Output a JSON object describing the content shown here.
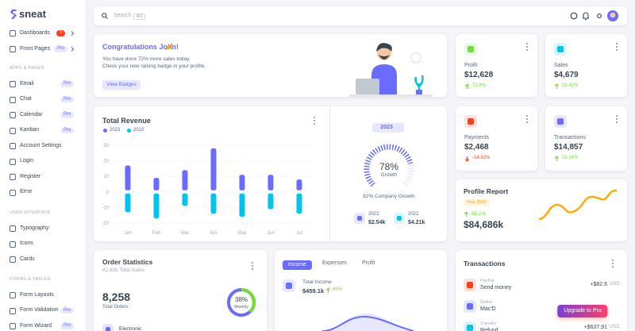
{
  "sidebar": {
    "brand": "sneat",
    "items": [
      {
        "label": "Dashboards",
        "badge": 5
      },
      {
        "label": "Front Pages",
        "badge": "Pro"
      }
    ],
    "sections": [
      {
        "title": "APPS & PAGES",
        "items": [
          {
            "label": "Email",
            "badge": "Pro"
          },
          {
            "label": "Chat",
            "badge": "Pro"
          },
          {
            "label": "Calendar",
            "badge": "Pro"
          },
          {
            "label": "Kanban",
            "badge": "Pro"
          },
          {
            "label": "Account Settings"
          },
          {
            "label": "Login"
          },
          {
            "label": "Register"
          },
          {
            "label": "Error"
          }
        ]
      },
      {
        "title": "USER INTERFACE",
        "items": [
          {
            "label": "Typography"
          },
          {
            "label": "Icons"
          },
          {
            "label": "Cards"
          }
        ]
      },
      {
        "title": "FORMS & TABLES",
        "items": [
          {
            "label": "Form Layouts"
          },
          {
            "label": "Form Validation",
            "badge": "Pro"
          },
          {
            "label": "Form Wizard",
            "badge": "Pro"
          }
        ]
      }
    ]
  },
  "topbar": {
    "search": "Search",
    "shortcut": "⌘K"
  },
  "congrats": {
    "title": "Congratulations John!",
    "lines": [
      "You have done 72% more sales today.",
      "Check your new raising badge in your profile."
    ],
    "button": "View Badges"
  },
  "stats": [
    {
      "label": "Profit",
      "value": "$12,628",
      "change": "72.8%",
      "trend": "up"
    },
    {
      "label": "Sales",
      "value": "$4,679",
      "change": "28.42%",
      "trend": "up"
    },
    {
      "label": "Payments",
      "value": "$2,468",
      "change": "-14.82%",
      "trend": "down"
    },
    {
      "label": "Transactions",
      "value": "$14,857",
      "change": "28.14%",
      "trend": "up"
    }
  ],
  "chart_data": {
    "type": "bar",
    "title": "Total Revenue",
    "categories": [
      "Jan",
      "Feb",
      "Mar",
      "Apr",
      "May",
      "Jun",
      "Jul"
    ],
    "series": [
      {
        "name": "2023",
        "color": "#696cff",
        "values": [
          17,
          9,
          14,
          28,
          11,
          11,
          8
        ]
      },
      {
        "name": "2022",
        "color": "#03c3ec",
        "values": [
          -13,
          -17,
          -9,
          -14,
          -16,
          -11,
          -14
        ]
      }
    ],
    "ylim": [
      -20,
      30
    ],
    "yticks": [
      -20,
      -10,
      0,
      10,
      20,
      30
    ],
    "grid": true
  },
  "growth": {
    "year": "2023",
    "value": 78,
    "value_label": "78%",
    "caption": "Growth",
    "company": "62% Company Growth",
    "stats": [
      {
        "year": "2023",
        "amount": "$2.54k"
      },
      {
        "year": "2022",
        "amount": "$4.21k"
      }
    ]
  },
  "profile_report": {
    "title": "Profile Report",
    "year": "Year 2022",
    "change": "68.2%",
    "value": "$84,686k"
  },
  "order_statistics": {
    "title": "Order Statistics",
    "subtitle": "42.82k Total Sales",
    "value": "8,258",
    "value_caption": "Total Orders",
    "weekly": 38,
    "weekly_label": "38%",
    "weekly_caption": "Weekly",
    "first_item": "Electronic"
  },
  "income": {
    "tabs": [
      "Income",
      "Expenses",
      "Profit"
    ],
    "label": "Total Income",
    "value": "$459.1k",
    "change": "65%"
  },
  "transactions": {
    "title": "Transactions",
    "items": [
      {
        "source": "PayPal",
        "desc": "Send money",
        "amount": "+$82.6",
        "currency": "USD"
      },
      {
        "source": "Wallet",
        "desc": "Mac'D"
      },
      {
        "source": "Transfer",
        "desc": "Refund",
        "amount": "+$637.91",
        "currency": "USD"
      }
    ]
  },
  "upgrade": "Upgrade to Pro"
}
